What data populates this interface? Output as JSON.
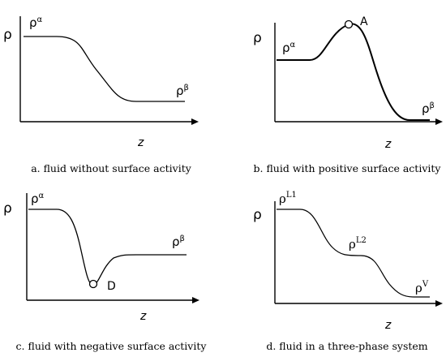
{
  "panels": [
    {
      "id": "a",
      "y_axis_label": "ρ",
      "x_axis_label": "z",
      "caption": "a. fluid without surface activity",
      "labels": {
        "left": {
          "base": "ρ",
          "sup": "α"
        },
        "right": {
          "base": "ρ",
          "sup": "β"
        }
      }
    },
    {
      "id": "b",
      "y_axis_label": "ρ",
      "x_axis_label": "z",
      "caption": "b. fluid with positive surface activity",
      "labels": {
        "left": {
          "base": "ρ",
          "sup": "α"
        },
        "right": {
          "base": "ρ",
          "sup": "β"
        }
      },
      "marker_label": "A"
    },
    {
      "id": "c",
      "y_axis_label": "ρ",
      "x_axis_label": "z",
      "caption": "c. fluid with negative surface activity",
      "labels": {
        "left": {
          "base": "ρ",
          "sup": "α"
        },
        "right": {
          "base": "ρ",
          "sup": "β"
        }
      },
      "marker_label": "D"
    },
    {
      "id": "d",
      "y_axis_label": "ρ",
      "x_axis_label": "z",
      "caption": "d. fluid in a three-phase system",
      "labels": {
        "left": {
          "base": "ρ",
          "sup": "L1"
        },
        "middle": {
          "base": "ρ",
          "sup": "L2"
        },
        "right": {
          "base": "ρ",
          "sup": "V"
        }
      }
    }
  ]
}
